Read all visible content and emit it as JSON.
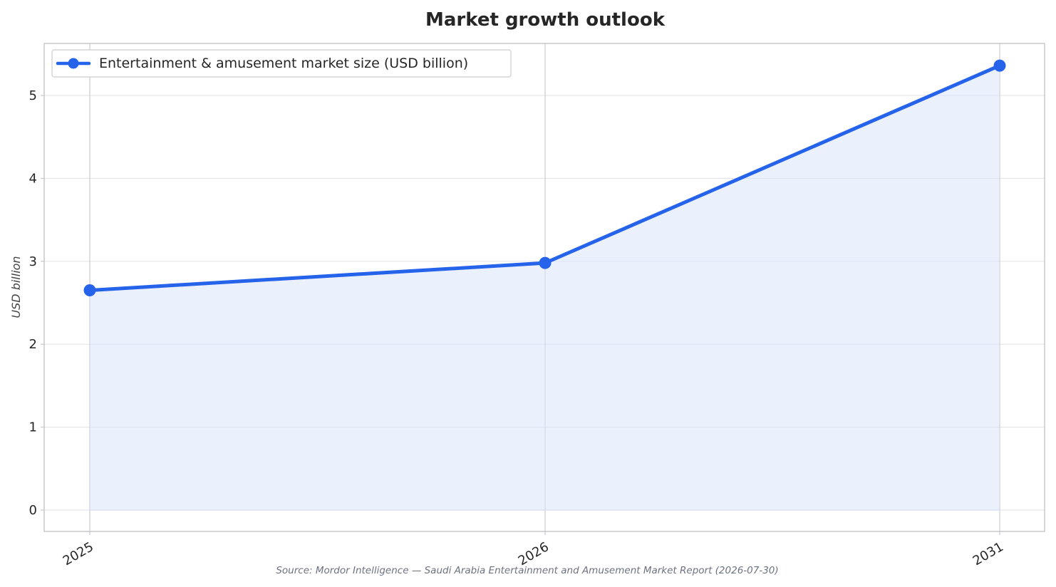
{
  "chart_data": {
    "type": "line",
    "title": "Market growth outlook",
    "xlabel": "",
    "ylabel": "USD billion",
    "categories": [
      "2025",
      "2026",
      "2031"
    ],
    "series": [
      {
        "name": "Entertainment & amusement market size (USD billion)",
        "values": [
          2.65,
          2.98,
          5.36
        ],
        "color": "#2563eb",
        "fill_color": "#dbe4fb"
      }
    ],
    "ylim": [
      0,
      5.36
    ],
    "yticks": [
      "0",
      "1",
      "2",
      "3",
      "4",
      "5"
    ],
    "grid": true,
    "legend_position": "top-left",
    "area_fill": true,
    "source": "Source: Mordor Intelligence — Saudi Arabia Entertainment and Amusement Market Report (2026-07-30)"
  }
}
